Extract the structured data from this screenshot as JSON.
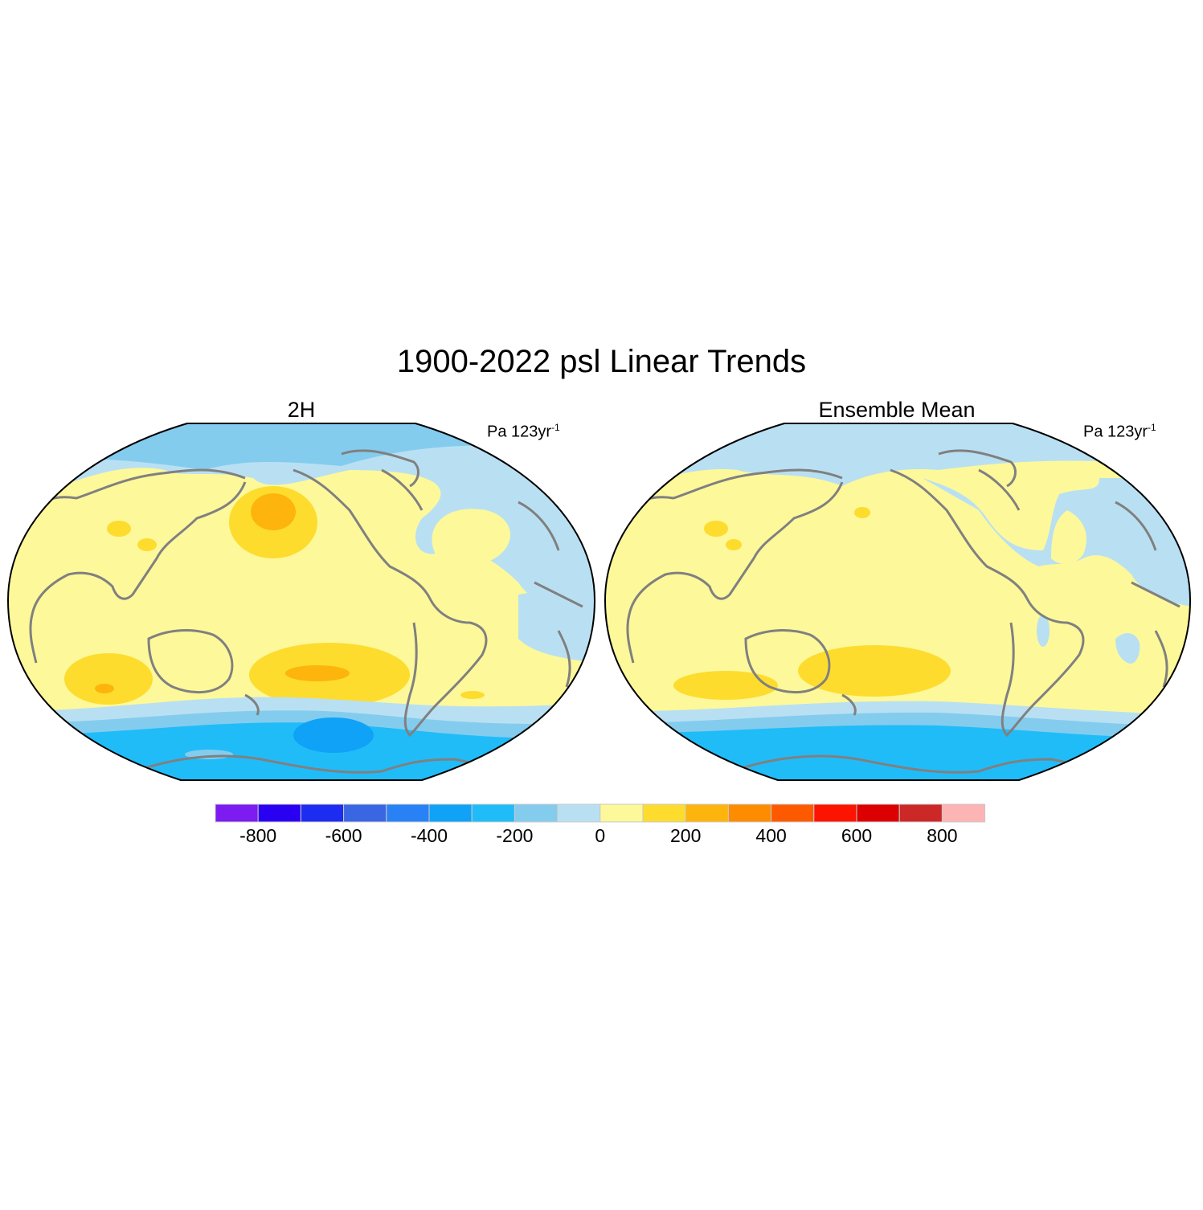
{
  "title": "1900-2022 psl Linear Trends",
  "panels": [
    {
      "title": "2H",
      "units": "Pa 123yr",
      "units_exp": "-1"
    },
    {
      "title": "Ensemble Mean",
      "units": "Pa 123yr",
      "units_exp": "-1"
    }
  ],
  "colorbar": {
    "levels": [
      -900,
      -800,
      -700,
      -600,
      -500,
      -400,
      -300,
      -200,
      -100,
      0,
      100,
      200,
      300,
      400,
      500,
      600,
      700,
      800,
      900
    ],
    "colors": [
      "#7c1cf0",
      "#2a00f2",
      "#1c2cf0",
      "#3a66e4",
      "#2882f6",
      "#10a2f6",
      "#20bcf8",
      "#84ccee",
      "#b9e0f2",
      "#fdf89a",
      "#fddc2e",
      "#fdb40c",
      "#fd8c00",
      "#fd5a00",
      "#fd1400",
      "#dc0000",
      "#cc2828",
      "#fdb4b4"
    ],
    "tick_labels": [
      "-800",
      "-600",
      "-400",
      "-200",
      "0",
      "200",
      "400",
      "600",
      "800"
    ]
  }
}
